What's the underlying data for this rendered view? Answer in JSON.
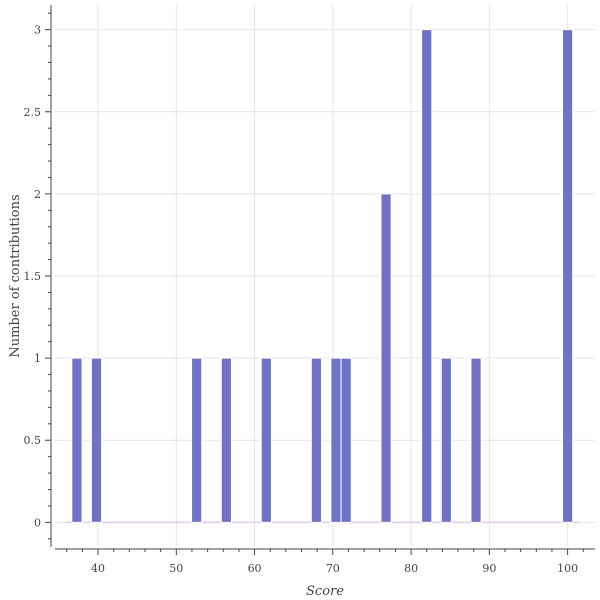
{
  "chart_data": {
    "type": "bar",
    "xlabel": "Score",
    "ylabel": "Number of contributions",
    "xlim": [
      34.5,
      103.5
    ],
    "ylim": [
      -0.15,
      3.15
    ],
    "bin_width": 1.3,
    "x": [
      37.3,
      39.8,
      52.6,
      56.4,
      61.5,
      67.9,
      70.4,
      71.7,
      76.8,
      82.0,
      84.5,
      88.3,
      100.0
    ],
    "values": [
      1,
      1,
      1,
      1,
      1,
      1,
      1,
      1,
      2,
      3,
      1,
      1,
      3
    ],
    "x_ticks": [
      "40",
      "50",
      "60",
      "70",
      "80",
      "90",
      "100"
    ],
    "x_tick_values": [
      40,
      50,
      60,
      70,
      80,
      90,
      100
    ],
    "y_ticks": [
      "0",
      "0.5",
      "1",
      "1.5",
      "2",
      "2.5",
      "3"
    ],
    "y_tick_values": [
      0,
      0.5,
      1,
      1.5,
      2,
      2.5,
      3
    ],
    "grid": true,
    "colors": {
      "bar": "#7072c6",
      "bar_edge": "#ffffff",
      "baseline": "#e6c8ee",
      "grid": "#e6e6e6",
      "axis": "#444444"
    }
  }
}
